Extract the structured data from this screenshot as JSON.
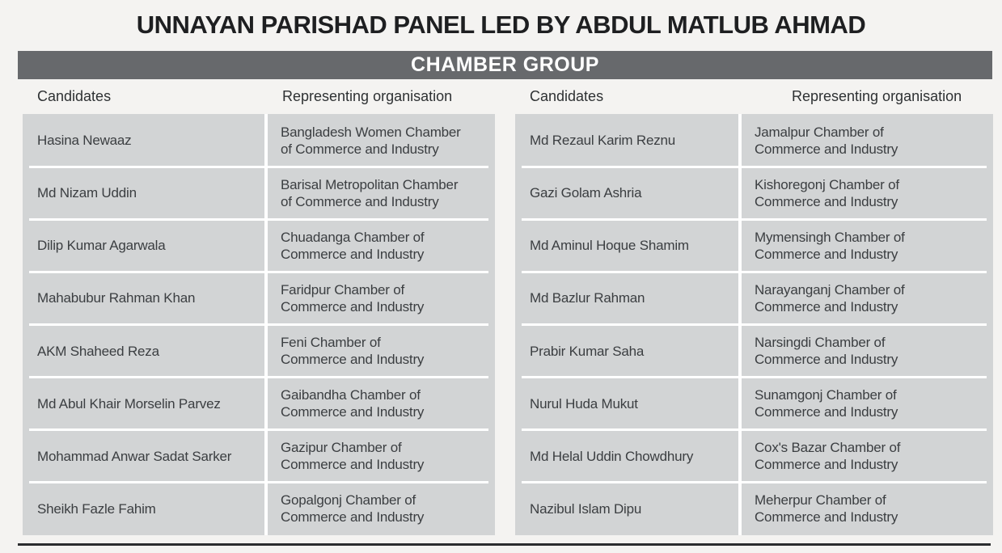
{
  "title": "UNNAYAN PARISHAD PANEL LED BY ABDUL MATLUB AHMAD",
  "group_header": "CHAMBER GROUP",
  "columns": {
    "candidate": "Candidates",
    "organisation": "Representing organisation"
  },
  "colors": {
    "page_bg": "#f4f3f1",
    "group_bar_bg": "#67696c",
    "group_bar_text": "#ffffff",
    "row_bg": "#d2d4d5",
    "separator": "#ffffff",
    "title_text": "#1e1f21",
    "cell_text": "#3b3e41",
    "bottom_rule": "#2b2d2f"
  },
  "tables": [
    {
      "rows": [
        {
          "candidate": "Hasina Newaaz",
          "organisation": "Bangladesh Women Chamber\nof Commerce and Industry"
        },
        {
          "candidate": "Md Nizam Uddin",
          "organisation": "Barisal Metropolitan Chamber\nof Commerce and Industry"
        },
        {
          "candidate": "Dilip Kumar Agarwala",
          "organisation": "Chuadanga Chamber of\nCommerce and Industry"
        },
        {
          "candidate": "Mahabubur Rahman Khan",
          "organisation": "Faridpur Chamber of\nCommerce and Industry"
        },
        {
          "candidate": "AKM Shaheed Reza",
          "organisation": "Feni Chamber of\nCommerce and Industry"
        },
        {
          "candidate": "Md Abul Khair Morselin Parvez",
          "organisation": "Gaibandha Chamber of\nCommerce and Industry"
        },
        {
          "candidate": "Mohammad Anwar Sadat Sarker",
          "organisation": "Gazipur Chamber of\nCommerce and Industry"
        },
        {
          "candidate": "Sheikh Fazle Fahim",
          "organisation": "Gopalgonj Chamber of\nCommerce and Industry"
        }
      ]
    },
    {
      "rows": [
        {
          "candidate": "Md Rezaul Karim Reznu",
          "organisation": "Jamalpur Chamber of\nCommerce and Industry"
        },
        {
          "candidate": "Gazi Golam Ashria",
          "organisation": "Kishoregonj Chamber of\nCommerce and Industry"
        },
        {
          "candidate": "Md Aminul Hoque Shamim",
          "organisation": "Mymensingh Chamber of\nCommerce and Industry"
        },
        {
          "candidate": "Md Bazlur Rahman",
          "organisation": "Narayanganj Chamber of\nCommerce and Industry"
        },
        {
          "candidate": "Prabir Kumar Saha",
          "organisation": "Narsingdi Chamber of\nCommerce and Industry"
        },
        {
          "candidate": "Nurul Huda Mukut",
          "organisation": "Sunamgonj Chamber of\nCommerce and Industry"
        },
        {
          "candidate": "Md Helal Uddin Chowdhury",
          "organisation": "Cox's Bazar Chamber of\nCommerce and Industry"
        },
        {
          "candidate": "Nazibul Islam Dipu",
          "organisation": "Meherpur Chamber of\nCommerce and Industry"
        }
      ]
    }
  ]
}
